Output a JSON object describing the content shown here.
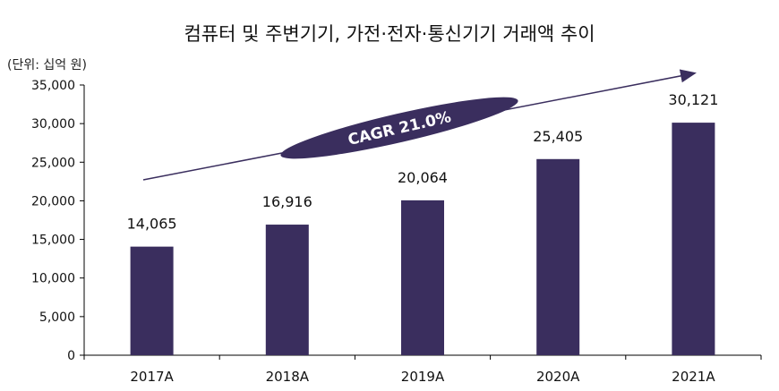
{
  "chart_data": {
    "type": "bar",
    "title": "컴퓨터 및 주변기기, 가전·전자·통신기기 거래액 추이",
    "unit": "(단위: 십억 원)",
    "categories": [
      "2017A",
      "2018A",
      "2019A",
      "2020A",
      "2021A"
    ],
    "values": [
      14065,
      16916,
      20064,
      25405,
      30121
    ],
    "value_labels": [
      "14,065",
      "16,916",
      "20,064",
      "25,405",
      "30,121"
    ],
    "ylim": [
      0,
      35000
    ],
    "yticks": [
      0,
      5000,
      10000,
      15000,
      20000,
      25000,
      30000,
      35000
    ],
    "ytick_labels": [
      "0",
      "5,000",
      "10,000",
      "15,000",
      "20,000",
      "25,000",
      "30,000",
      "35,000"
    ],
    "grid": false,
    "annotation": "CAGR 21.0%",
    "colors": {
      "bar": "#3A2E5E",
      "annotation": "#3A2E5E",
      "axis": "#000000"
    }
  }
}
